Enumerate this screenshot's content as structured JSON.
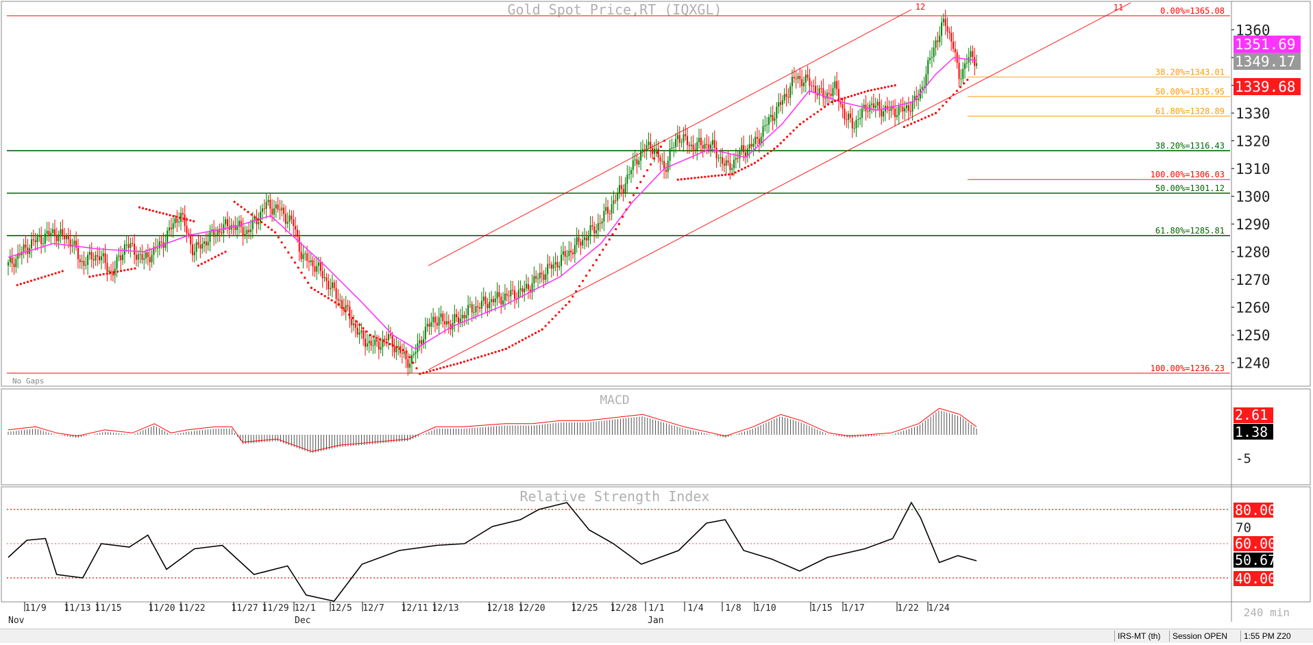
{
  "chart_data": [
    {
      "type": "candlestick",
      "title": "Gold Spot Price,RT (IQXGL)",
      "ylim": [
        1232,
        1368
      ],
      "y_ticks": [
        1240,
        1250,
        1260,
        1270,
        1280,
        1290,
        1300,
        1310,
        1320,
        1330,
        1340,
        1350,
        1360
      ],
      "price_labels": {
        "upper": "1351.69",
        "last": "1349.17",
        "lower": "1339.68"
      },
      "note": "No Gaps",
      "price_points": [
        {
          "x": 0,
          "y": 1275
        },
        {
          "x": 10,
          "y": 1283
        },
        {
          "x": 20,
          "y": 1287
        },
        {
          "x": 28,
          "y": 1284
        },
        {
          "x": 32,
          "y": 1276
        },
        {
          "x": 40,
          "y": 1279
        },
        {
          "x": 46,
          "y": 1272
        },
        {
          "x": 52,
          "y": 1283
        },
        {
          "x": 60,
          "y": 1277
        },
        {
          "x": 68,
          "y": 1283
        },
        {
          "x": 76,
          "y": 1294
        },
        {
          "x": 82,
          "y": 1280
        },
        {
          "x": 90,
          "y": 1286
        },
        {
          "x": 98,
          "y": 1290
        },
        {
          "x": 106,
          "y": 1287
        },
        {
          "x": 114,
          "y": 1297
        },
        {
          "x": 120,
          "y": 1295
        },
        {
          "x": 126,
          "y": 1290
        },
        {
          "x": 130,
          "y": 1278
        },
        {
          "x": 136,
          "y": 1275
        },
        {
          "x": 142,
          "y": 1268
        },
        {
          "x": 150,
          "y": 1258
        },
        {
          "x": 156,
          "y": 1249
        },
        {
          "x": 162,
          "y": 1246
        },
        {
          "x": 168,
          "y": 1249
        },
        {
          "x": 174,
          "y": 1243
        },
        {
          "x": 178,
          "y": 1240
        },
        {
          "x": 182,
          "y": 1248
        },
        {
          "x": 188,
          "y": 1256
        },
        {
          "x": 196,
          "y": 1254
        },
        {
          "x": 204,
          "y": 1259
        },
        {
          "x": 212,
          "y": 1262
        },
        {
          "x": 220,
          "y": 1264
        },
        {
          "x": 228,
          "y": 1266
        },
        {
          "x": 236,
          "y": 1272
        },
        {
          "x": 244,
          "y": 1277
        },
        {
          "x": 252,
          "y": 1283
        },
        {
          "x": 260,
          "y": 1289
        },
        {
          "x": 266,
          "y": 1296
        },
        {
          "x": 272,
          "y": 1304
        },
        {
          "x": 278,
          "y": 1314
        },
        {
          "x": 284,
          "y": 1319
        },
        {
          "x": 290,
          "y": 1310
        },
        {
          "x": 296,
          "y": 1322
        },
        {
          "x": 302,
          "y": 1318
        },
        {
          "x": 310,
          "y": 1319
        },
        {
          "x": 318,
          "y": 1310
        },
        {
          "x": 324,
          "y": 1316
        },
        {
          "x": 330,
          "y": 1319
        },
        {
          "x": 336,
          "y": 1327
        },
        {
          "x": 342,
          "y": 1334
        },
        {
          "x": 348,
          "y": 1343
        },
        {
          "x": 354,
          "y": 1341
        },
        {
          "x": 360,
          "y": 1336
        },
        {
          "x": 366,
          "y": 1339
        },
        {
          "x": 370,
          "y": 1328
        },
        {
          "x": 374,
          "y": 1326
        },
        {
          "x": 380,
          "y": 1333
        },
        {
          "x": 388,
          "y": 1331
        },
        {
          "x": 396,
          "y": 1331
        },
        {
          "x": 402,
          "y": 1335
        },
        {
          "x": 406,
          "y": 1345
        },
        {
          "x": 410,
          "y": 1356
        },
        {
          "x": 414,
          "y": 1363
        },
        {
          "x": 418,
          "y": 1354
        },
        {
          "x": 420,
          "y": 1342
        },
        {
          "x": 424,
          "y": 1350
        },
        {
          "x": 428,
          "y": 1349
        }
      ],
      "moving_average": [
        {
          "x": 0,
          "y": 1278
        },
        {
          "x": 20,
          "y": 1283
        },
        {
          "x": 40,
          "y": 1281
        },
        {
          "x": 60,
          "y": 1280
        },
        {
          "x": 80,
          "y": 1286
        },
        {
          "x": 100,
          "y": 1289
        },
        {
          "x": 116,
          "y": 1293
        },
        {
          "x": 128,
          "y": 1284
        },
        {
          "x": 140,
          "y": 1275
        },
        {
          "x": 156,
          "y": 1262
        },
        {
          "x": 170,
          "y": 1250
        },
        {
          "x": 180,
          "y": 1245
        },
        {
          "x": 196,
          "y": 1253
        },
        {
          "x": 220,
          "y": 1261
        },
        {
          "x": 244,
          "y": 1271
        },
        {
          "x": 262,
          "y": 1283
        },
        {
          "x": 276,
          "y": 1298
        },
        {
          "x": 290,
          "y": 1310
        },
        {
          "x": 310,
          "y": 1317
        },
        {
          "x": 326,
          "y": 1314
        },
        {
          "x": 342,
          "y": 1326
        },
        {
          "x": 354,
          "y": 1338
        },
        {
          "x": 368,
          "y": 1334
        },
        {
          "x": 384,
          "y": 1331
        },
        {
          "x": 400,
          "y": 1334
        },
        {
          "x": 410,
          "y": 1344
        },
        {
          "x": 418,
          "y": 1350
        },
        {
          "x": 428,
          "y": 1349
        }
      ],
      "parabolic_sar": [
        {
          "x": 4,
          "y": 1268
        },
        {
          "x": 24,
          "y": 1273
        },
        {
          "x": 30,
          "y": 1287
        },
        {
          "x": 36,
          "y": 1271
        },
        {
          "x": 56,
          "y": 1274
        },
        {
          "x": 58,
          "y": 1296
        },
        {
          "x": 82,
          "y": 1291
        },
        {
          "x": 84,
          "y": 1275
        },
        {
          "x": 96,
          "y": 1280
        },
        {
          "x": 100,
          "y": 1298
        },
        {
          "x": 118,
          "y": 1287
        },
        {
          "x": 134,
          "y": 1267
        },
        {
          "x": 146,
          "y": 1261
        },
        {
          "x": 160,
          "y": 1250
        },
        {
          "x": 176,
          "y": 1244
        },
        {
          "x": 182,
          "y": 1236
        },
        {
          "x": 200,
          "y": 1240
        },
        {
          "x": 220,
          "y": 1245
        },
        {
          "x": 236,
          "y": 1252
        },
        {
          "x": 248,
          "y": 1262
        },
        {
          "x": 260,
          "y": 1277
        },
        {
          "x": 270,
          "y": 1290
        },
        {
          "x": 278,
          "y": 1303
        },
        {
          "x": 290,
          "y": 1320
        },
        {
          "x": 296,
          "y": 1306
        },
        {
          "x": 320,
          "y": 1308
        },
        {
          "x": 330,
          "y": 1312
        },
        {
          "x": 340,
          "y": 1318
        },
        {
          "x": 350,
          "y": 1326
        },
        {
          "x": 364,
          "y": 1334
        },
        {
          "x": 380,
          "y": 1338
        },
        {
          "x": 392,
          "y": 1340
        },
        {
          "x": 396,
          "y": 1325
        },
        {
          "x": 410,
          "y": 1330
        },
        {
          "x": 424,
          "y": 1342
        }
      ],
      "fibonacci_levels": [
        {
          "label": "0.00%=1365.08",
          "value": 1365.08,
          "color": "#ff0000"
        },
        {
          "label": "38.20%=1343.01",
          "value": 1343.01,
          "color": "#ff9900"
        },
        {
          "label": "50.00%=1335.95",
          "value": 1335.95,
          "color": "#ff9900"
        },
        {
          "label": "61.80%=1328.89",
          "value": 1328.89,
          "color": "#ff9900"
        },
        {
          "label": "38.20%=1316.43",
          "value": 1316.43,
          "color": "#006400"
        },
        {
          "label": "100.00%=1306.03",
          "value": 1306.03,
          "color": "#ff0000"
        },
        {
          "label": "50.00%=1301.12",
          "value": 1301.12,
          "color": "#006400"
        },
        {
          "label": "61.80%=1285.81",
          "value": 1285.81,
          "color": "#006400"
        },
        {
          "label": "100.00%=1236.23",
          "value": 1236.23,
          "color": "#ff0000"
        }
      ],
      "channel_labels": [
        "12",
        "11"
      ]
    },
    {
      "type": "histogram",
      "title": "MACD",
      "y_ticks": [
        "-5"
      ],
      "value_labels": {
        "signal": "2.61",
        "macd": "1.38"
      },
      "series": [
        {
          "x": 0,
          "y": 1
        },
        {
          "x": 20,
          "y": 2
        },
        {
          "x": 35,
          "y": 0
        },
        {
          "x": 50,
          "y": -1
        },
        {
          "x": 70,
          "y": 1
        },
        {
          "x": 90,
          "y": 0
        },
        {
          "x": 106,
          "y": 3
        },
        {
          "x": 118,
          "y": 0
        },
        {
          "x": 130,
          "y": 1
        },
        {
          "x": 150,
          "y": 2
        },
        {
          "x": 162,
          "y": 2
        },
        {
          "x": 170,
          "y": -3
        },
        {
          "x": 195,
          "y": -2
        },
        {
          "x": 220,
          "y": -6
        },
        {
          "x": 240,
          "y": -4
        },
        {
          "x": 265,
          "y": -3
        },
        {
          "x": 290,
          "y": -2
        },
        {
          "x": 310,
          "y": 2
        },
        {
          "x": 330,
          "y": 2
        },
        {
          "x": 360,
          "y": 3
        },
        {
          "x": 380,
          "y": 3
        },
        {
          "x": 400,
          "y": 4
        },
        {
          "x": 420,
          "y": 4
        },
        {
          "x": 440,
          "y": 5
        },
        {
          "x": 460,
          "y": 6
        },
        {
          "x": 475,
          "y": 4
        },
        {
          "x": 490,
          "y": 2
        },
        {
          "x": 520,
          "y": -1
        },
        {
          "x": 540,
          "y": 2
        },
        {
          "x": 560,
          "y": 6
        },
        {
          "x": 575,
          "y": 4
        },
        {
          "x": 595,
          "y": 0
        },
        {
          "x": 610,
          "y": -1
        },
        {
          "x": 640,
          "y": 0
        },
        {
          "x": 660,
          "y": 3
        },
        {
          "x": 675,
          "y": 8
        },
        {
          "x": 690,
          "y": 6
        },
        {
          "x": 702,
          "y": 2
        }
      ]
    },
    {
      "type": "line",
      "title": "Relative Strength Index",
      "y_ticks": [
        "80.00",
        "70",
        "60.00",
        "40.00"
      ],
      "last_value": "50.67",
      "series": [
        {
          "x": 0,
          "y": 52
        },
        {
          "x": 10,
          "y": 62
        },
        {
          "x": 20,
          "y": 63
        },
        {
          "x": 26,
          "y": 42
        },
        {
          "x": 40,
          "y": 40
        },
        {
          "x": 50,
          "y": 60
        },
        {
          "x": 65,
          "y": 58
        },
        {
          "x": 75,
          "y": 65
        },
        {
          "x": 85,
          "y": 45
        },
        {
          "x": 100,
          "y": 57
        },
        {
          "x": 115,
          "y": 59
        },
        {
          "x": 132,
          "y": 42
        },
        {
          "x": 150,
          "y": 47
        },
        {
          "x": 160,
          "y": 30
        },
        {
          "x": 175,
          "y": 24
        },
        {
          "x": 190,
          "y": 48
        },
        {
          "x": 210,
          "y": 56
        },
        {
          "x": 230,
          "y": 59
        },
        {
          "x": 245,
          "y": 60
        },
        {
          "x": 260,
          "y": 70
        },
        {
          "x": 275,
          "y": 74
        },
        {
          "x": 285,
          "y": 80
        },
        {
          "x": 300,
          "y": 84
        },
        {
          "x": 312,
          "y": 68
        },
        {
          "x": 325,
          "y": 60
        },
        {
          "x": 340,
          "y": 48
        },
        {
          "x": 360,
          "y": 56
        },
        {
          "x": 375,
          "y": 72
        },
        {
          "x": 385,
          "y": 74
        },
        {
          "x": 395,
          "y": 56
        },
        {
          "x": 410,
          "y": 51
        },
        {
          "x": 425,
          "y": 44
        },
        {
          "x": 440,
          "y": 52
        },
        {
          "x": 460,
          "y": 57
        },
        {
          "x": 475,
          "y": 63
        },
        {
          "x": 485,
          "y": 84
        },
        {
          "x": 490,
          "y": 75
        },
        {
          "x": 500,
          "y": 49
        },
        {
          "x": 510,
          "y": 53
        },
        {
          "x": 520,
          "y": 50
        }
      ]
    }
  ],
  "x_axis": {
    "day_ticks": [
      "11/9",
      "11/13",
      "11/15",
      "11/20",
      "11/22",
      "11/27",
      "11/29",
      "12/1",
      "12/5",
      "12/7",
      "12/11",
      "12/13",
      "12/18",
      "12/20",
      "12/25",
      "12/28",
      "1/1",
      "1/4",
      "1/8",
      "1/10",
      "1/15",
      "1/17",
      "1/22",
      "1/24"
    ],
    "month_labels": [
      "Nov",
      "Dec",
      "Jan"
    ],
    "interval": "240 min"
  },
  "status_bar": {
    "mode": "IRS-MT (th)",
    "session": "Session OPEN",
    "time": "1:55 PM Z20"
  },
  "colors": {
    "price_up": "#008000",
    "price_down": "#ff0000",
    "average": "#ff33ff",
    "sar": "#ff0000",
    "label_red": "#ff1a1a",
    "label_magenta": "#ff33ff",
    "label_gray": "#999999"
  }
}
